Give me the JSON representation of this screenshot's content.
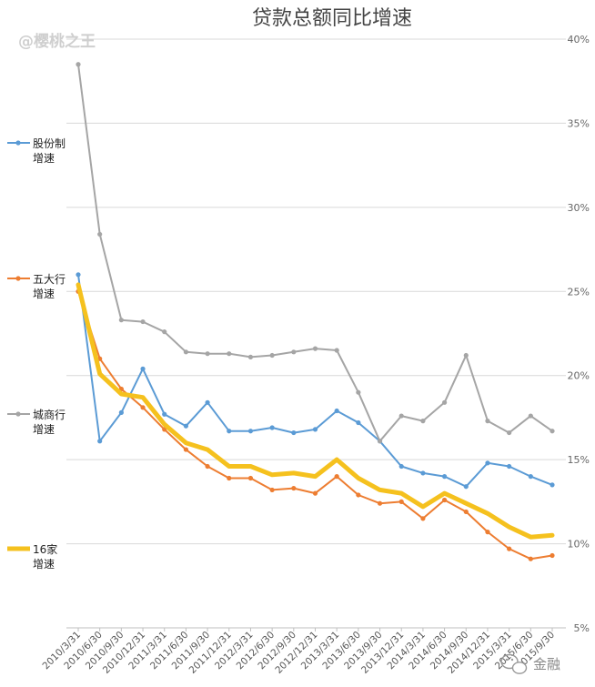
{
  "watermark": "@樱桃之王",
  "logo": {
    "text": "金融"
  },
  "chart_data": {
    "type": "line",
    "title": "贷款总额同比增速",
    "xlabel": "",
    "ylabel": "",
    "y_axis_position": "right",
    "ylim": [
      0.05,
      0.4
    ],
    "yticks": [
      {
        "value": 0.05,
        "label": "5%"
      },
      {
        "value": 0.1,
        "label": "10%"
      },
      {
        "value": 0.15,
        "label": "15%"
      },
      {
        "value": 0.2,
        "label": "20%"
      },
      {
        "value": 0.25,
        "label": "25%"
      },
      {
        "value": 0.3,
        "label": "30%"
      },
      {
        "value": 0.35,
        "label": "35%"
      },
      {
        "value": 0.4,
        "label": "40%"
      }
    ],
    "grid": true,
    "legend_position": "left",
    "categories": [
      "2010/3/31",
      "2010/6/30",
      "2010/9/30",
      "2010/12/31",
      "2011/3/31",
      "2011/6/30",
      "2011/9/30",
      "2011/12/31",
      "2012/3/31",
      "2012/6/30",
      "2012/9/30",
      "2012/12/31",
      "2013/3/31",
      "2013/6/30",
      "2013/9/30",
      "2013/12/31",
      "2014/3/31",
      "2014/6/30",
      "2014/9/30",
      "2014/12/31",
      "2015/3/31",
      "2015/6/30",
      "2015/9/30"
    ],
    "series": [
      {
        "name": "股份制增速",
        "label_lines": [
          "股份制",
          "增速"
        ],
        "color": "#5b9bd5",
        "width": 2,
        "values": [
          0.26,
          0.161,
          0.178,
          0.204,
          0.177,
          0.17,
          0.184,
          0.167,
          0.167,
          0.169,
          0.166,
          0.168,
          0.179,
          0.172,
          0.161,
          0.146,
          0.142,
          0.14,
          0.134,
          0.148,
          0.146,
          0.14,
          0.135
        ]
      },
      {
        "name": "五大行增速",
        "label_lines": [
          "五大行",
          "增速"
        ],
        "color": "#ed7d31",
        "width": 2,
        "values": [
          0.25,
          0.21,
          0.192,
          0.181,
          0.168,
          0.156,
          0.146,
          0.139,
          0.139,
          0.132,
          0.133,
          0.13,
          0.14,
          0.129,
          0.124,
          0.125,
          0.115,
          0.126,
          0.119,
          0.107,
          0.097,
          0.091,
          0.093
        ]
      },
      {
        "name": "城商行增速",
        "label_lines": [
          "城商行",
          "增速"
        ],
        "color": "#a5a5a5",
        "width": 2,
        "values": [
          0.385,
          0.284,
          0.233,
          0.232,
          0.226,
          0.214,
          0.213,
          0.213,
          0.211,
          0.212,
          0.214,
          0.216,
          0.215,
          0.19,
          0.161,
          0.176,
          0.173,
          0.184,
          0.212,
          0.173,
          0.166,
          0.176,
          0.167
        ]
      },
      {
        "name": "16家增速",
        "label_lines": [
          "16家",
          "增速"
        ],
        "color": "#f5c11e",
        "width": 5,
        "values": [
          0.254,
          0.201,
          0.189,
          0.187,
          0.171,
          0.16,
          0.156,
          0.146,
          0.146,
          0.141,
          0.142,
          0.14,
          0.15,
          0.139,
          0.132,
          0.13,
          0.122,
          0.13,
          0.124,
          0.118,
          0.11,
          0.104,
          0.105
        ]
      }
    ]
  }
}
